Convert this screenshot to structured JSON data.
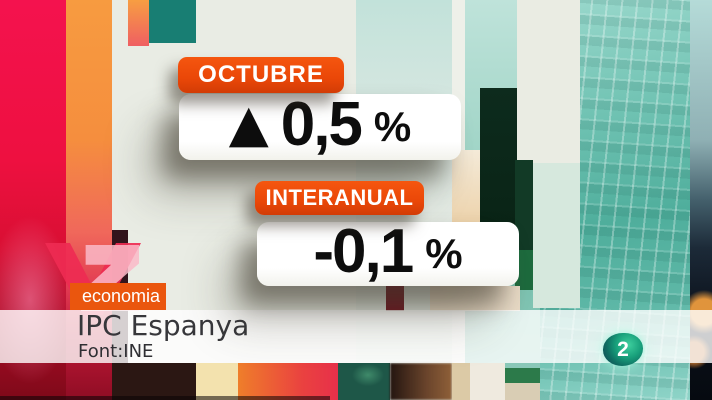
{
  "indicators": {
    "monthly": {
      "label": "OCTUBRE",
      "arrow": "▲",
      "value": "0,5",
      "unit": "%"
    },
    "annual": {
      "label": "INTERANUAL",
      "value": "-0,1",
      "unit": "%"
    }
  },
  "footer": {
    "category_label": "economia",
    "title": "IPC Espanya",
    "source": "Font:INE"
  },
  "channel": {
    "number": "2"
  },
  "colors": {
    "accent_orange": "#ea4708",
    "category_orange": "#ea560e",
    "panel_white": "#ffffff",
    "value_text": "#0d0d0d",
    "teal_square": "#187e73",
    "channel_teal": "#18a07b",
    "band_white": "rgba(255,255,255,0.8)"
  }
}
